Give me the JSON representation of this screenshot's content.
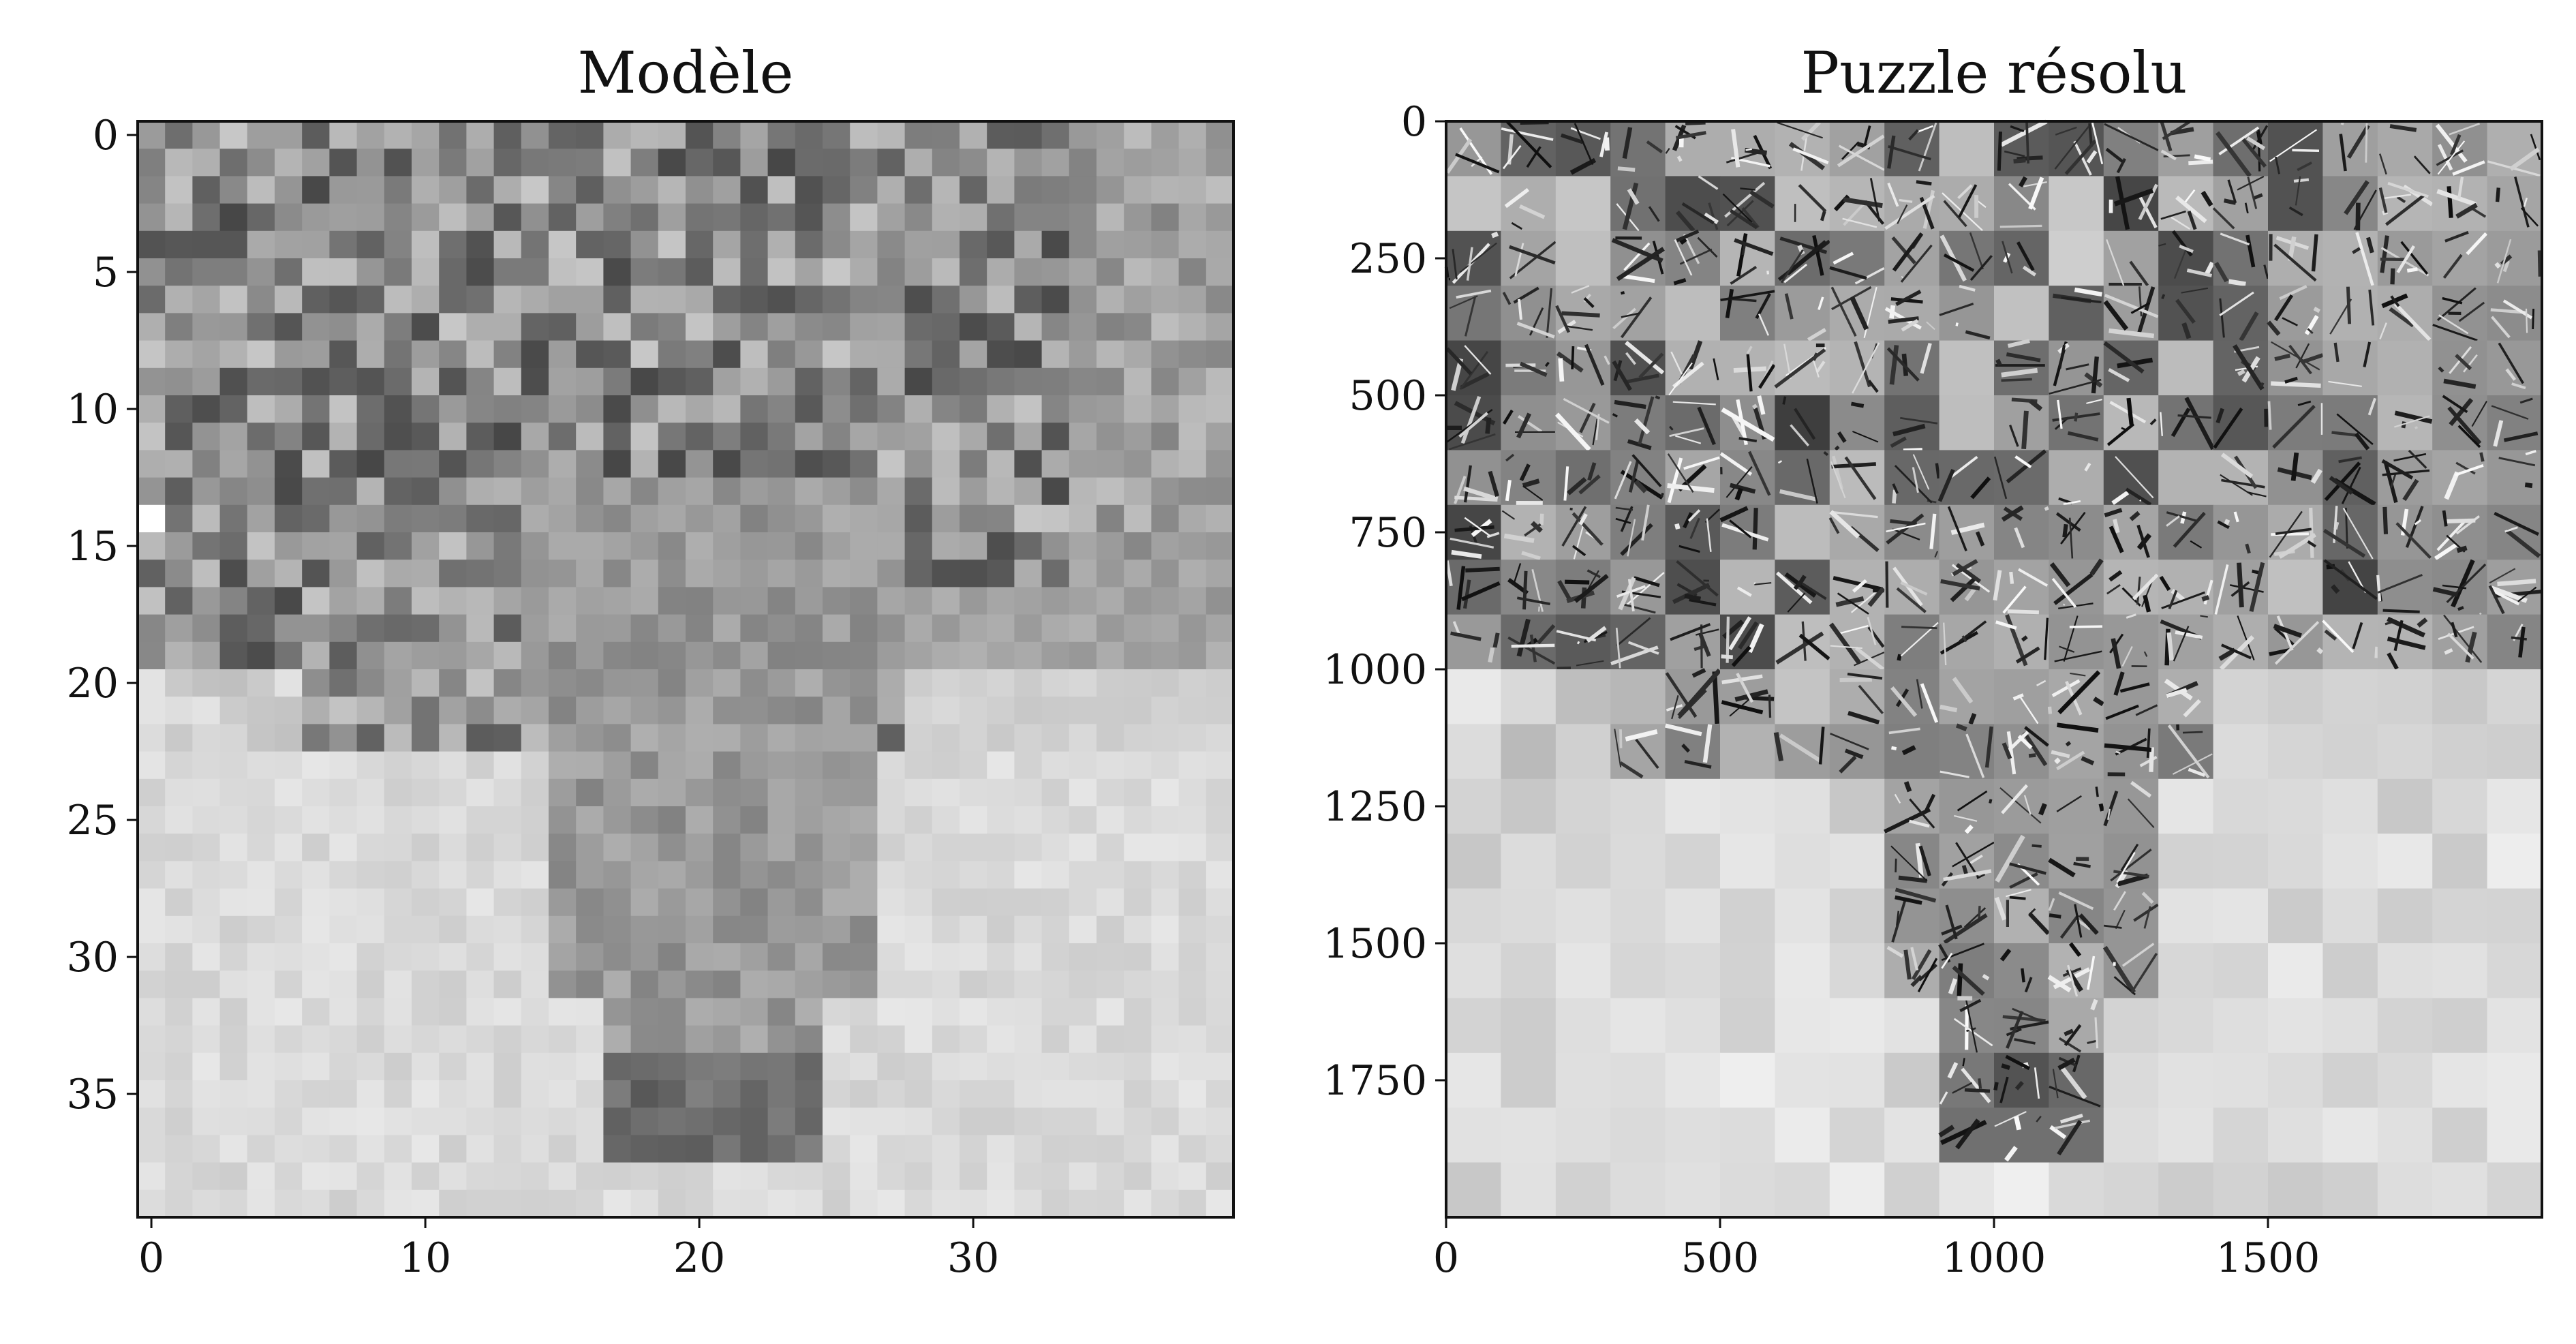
{
  "chart_data": [
    {
      "type": "heatmap",
      "title": "Modèle",
      "colormap": "gray",
      "grid": false,
      "xlim": [
        -0.5,
        39.5
      ],
      "ylim": [
        39.5,
        -0.5
      ],
      "xticks": [
        0,
        10,
        20,
        30
      ],
      "xtick_labels": [
        "0",
        "10",
        "20",
        "30"
      ],
      "yticks": [
        0,
        5,
        10,
        15,
        20,
        25,
        30,
        35
      ],
      "ytick_labels": [
        "0",
        "5",
        "10",
        "15",
        "20",
        "25",
        "30",
        "35"
      ],
      "shape": [
        40,
        40
      ]
    },
    {
      "type": "heatmap",
      "title": "Puzzle résolu",
      "colormap": "gray",
      "grid": false,
      "xlim": [
        0,
        2000
      ],
      "ylim": [
        2000,
        0
      ],
      "xticks": [
        0,
        500,
        1000,
        1500
      ],
      "xtick_labels": [
        "0",
        "500",
        "1000",
        "1500"
      ],
      "yticks": [
        0,
        250,
        500,
        750,
        1000,
        1250,
        1500,
        1750
      ],
      "ytick_labels": [
        "0",
        "250",
        "500",
        "750",
        "1000",
        "1250",
        "1500",
        "1750"
      ],
      "tile_size": 100,
      "tiles_per_side": 20
    }
  ]
}
